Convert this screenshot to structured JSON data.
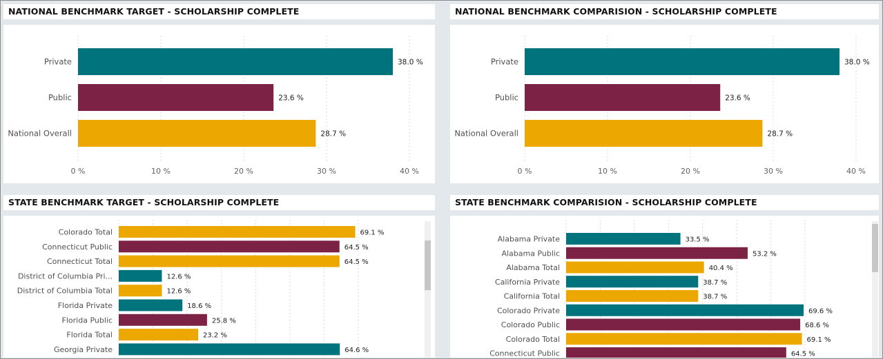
{
  "colors": {
    "teal": "#00737c",
    "maroon": "#7c2245",
    "gold": "#eca800"
  },
  "chart_data": [
    {
      "type": "bar",
      "orientation": "horizontal",
      "title": "NATIONAL BENCHMARK TARGET - SCHOLARSHIP COMPLETE",
      "categories": [
        "Private",
        "Public",
        "National Overall"
      ],
      "values": [
        38.0,
        23.6,
        28.7
      ],
      "value_labels": [
        "38.0 %",
        "23.6 %",
        "28.7 %"
      ],
      "bar_colors": [
        "teal",
        "maroon",
        "gold"
      ],
      "xlim": [
        0,
        40
      ],
      "xticks": [
        "0 %",
        "10 %",
        "20 %",
        "30 %",
        "40 %"
      ],
      "grid": true
    },
    {
      "type": "bar",
      "orientation": "horizontal",
      "title": "NATIONAL BENCHMARK COMPARISION - SCHOLARSHIP COMPLETE",
      "categories": [
        "Private",
        "Public",
        "National Overall"
      ],
      "values": [
        38.0,
        23.6,
        28.7
      ],
      "value_labels": [
        "38.0 %",
        "23.6 %",
        "28.7 %"
      ],
      "bar_colors": [
        "teal",
        "maroon",
        "gold"
      ],
      "xlim": [
        0,
        40
      ],
      "xticks": [
        "0 %",
        "10 %",
        "20 %",
        "30 %",
        "40 %"
      ],
      "grid": true
    },
    {
      "type": "bar",
      "orientation": "horizontal",
      "title": "STATE BENCHMARK TARGET - SCHOLARSHIP COMPLETE",
      "categories": [
        "Colorado Total",
        "Connecticut Public",
        "Connecticut Total",
        "District of Columbia Pri...",
        "District of Columbia Total",
        "Florida Private",
        "Florida Public",
        "Florida Total",
        "Georgia Private"
      ],
      "values": [
        69.1,
        64.5,
        64.5,
        12.6,
        12.6,
        18.6,
        25.8,
        23.2,
        64.6
      ],
      "value_labels": [
        "69.1 %",
        "64.5 %",
        "64.5 %",
        "12.6 %",
        "12.6 %",
        "18.6 %",
        "25.8 %",
        "23.2 %",
        "64.6 %"
      ],
      "bar_colors": [
        "gold",
        "maroon",
        "gold",
        "teal",
        "gold",
        "teal",
        "maroon",
        "gold",
        "teal"
      ],
      "xlim": [
        0,
        70
      ],
      "grid": true
    },
    {
      "type": "bar",
      "orientation": "horizontal",
      "title": "STATE BENCHMARK COMPARISION - SCHOLARSHIP COMPLETE",
      "categories": [
        "Alabama Private",
        "Alabama Public",
        "Alabama Total",
        "California Private",
        "California Total",
        "Colorado Private",
        "Colorado Public",
        "Colorado Total",
        "Connecticut Public"
      ],
      "values": [
        33.5,
        53.2,
        40.4,
        38.7,
        38.7,
        69.6,
        68.6,
        69.1,
        64.5
      ],
      "value_labels": [
        "33.5 %",
        "53.2 %",
        "40.4 %",
        "38.7 %",
        "38.7 %",
        "69.6 %",
        "68.6 %",
        "69.1 %",
        "64.5 %"
      ],
      "bar_colors": [
        "teal",
        "maroon",
        "gold",
        "teal",
        "gold",
        "teal",
        "maroon",
        "gold",
        "maroon"
      ],
      "xlim": [
        0,
        70
      ],
      "grid": true
    }
  ]
}
